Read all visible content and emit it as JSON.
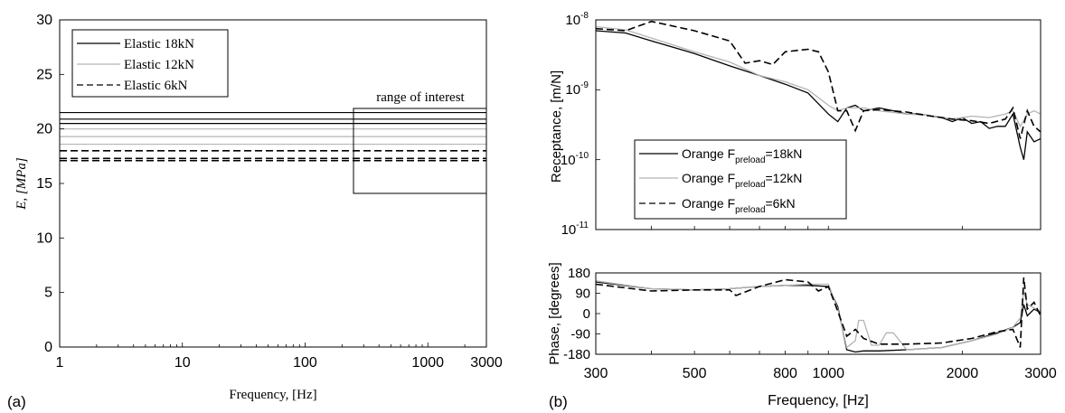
{
  "colors": {
    "black": "#000000",
    "gray": "#b4b4b4"
  },
  "chart_data": [
    {
      "panel_label": "(a)",
      "type": "line",
      "xscale": "log",
      "xlim": [
        1,
        3000
      ],
      "ylim": [
        0,
        30
      ],
      "xticks": [
        1,
        10,
        100,
        1000,
        3000
      ],
      "xtick_labels": [
        "1",
        "10",
        "100",
        "1000",
        "3000"
      ],
      "yticks": [
        0,
        5,
        10,
        15,
        20,
        25,
        30
      ],
      "ytick_labels": [
        "0",
        "5",
        "10",
        "15",
        "20",
        "25",
        "30"
      ],
      "xlabel": "Frequency, [Hz]",
      "ylabel": "E, [MPa]",
      "legend": {
        "placement": "top-left",
        "entries": [
          "Elastic 18kN",
          "Elastic 12kN",
          "Elastic 6kN"
        ]
      },
      "series": [
        {
          "name": "Elastic 18kN",
          "style": "solid",
          "color": "#000000",
          "x": [
            1,
            3000
          ],
          "levels": [
            21.5,
            20.9,
            20.5
          ]
        },
        {
          "name": "Elastic 12kN",
          "style": "solid",
          "color": "#b4b4b4",
          "x": [
            1,
            3000
          ],
          "levels": [
            20.0,
            19.3,
            18.6
          ]
        },
        {
          "name": "Elastic 6kN",
          "style": "dashed",
          "color": "#000000",
          "x": [
            1,
            3000
          ],
          "levels": [
            18.0,
            17.3,
            17.1
          ]
        }
      ],
      "annotation": {
        "text": "range of interest",
        "x": [
          250,
          3000
        ],
        "y": [
          14.1,
          24.2
        ]
      }
    },
    {
      "panel_label": "(b)",
      "type": "line",
      "xscale": "log",
      "yscale": "log",
      "xlim": [
        300,
        3000
      ],
      "ylim": [
        1e-11,
        1e-08
      ],
      "ytick_labels": [
        {
          "value": 1e-08,
          "base": "10",
          "exp": "-8"
        },
        {
          "value": 1e-09,
          "base": "10",
          "exp": "-9"
        },
        {
          "value": 1e-10,
          "base": "10",
          "exp": "-10"
        },
        {
          "value": 1e-11,
          "base": "10",
          "exp": "-11"
        }
      ],
      "ylabel": "Receptance, [m/N]",
      "legend": {
        "placement": "bottom-left",
        "entries": [
          {
            "prefix": "Orange F",
            "sub": "preload",
            "suffix": "=18kN"
          },
          {
            "prefix": "Orange F",
            "sub": "preload",
            "suffix": "=12kN"
          },
          {
            "prefix": "Orange F",
            "sub": "preload",
            "suffix": "=6kN"
          }
        ]
      },
      "series": [
        {
          "name": "Orange Fpreload=18kN",
          "style": "solid",
          "color": "#000000",
          "x": [
            300,
            350,
            400,
            500,
            600,
            700,
            800,
            900,
            1000,
            1050,
            1100,
            1150,
            1200,
            1300,
            1400,
            1500,
            1600,
            1800,
            1900,
            2000,
            2100,
            2200,
            2300,
            2400,
            2500,
            2600,
            2700,
            2750,
            2800,
            2900,
            3000
          ],
          "y": [
            7e-09,
            6.5e-09,
            5e-09,
            3.3e-09,
            2.2e-09,
            1.6e-09,
            1.2e-09,
            9e-10,
            4.5e-10,
            3.5e-10,
            5.5e-10,
            6e-10,
            5e-10,
            5.5e-10,
            5e-10,
            4.5e-10,
            4.5e-10,
            4e-10,
            3.5e-10,
            4e-10,
            3.3e-10,
            3.5e-10,
            2.8e-10,
            3e-10,
            3e-10,
            4.5e-10,
            1.5e-10,
            1e-10,
            2.5e-10,
            1.8e-10,
            2e-10
          ]
        },
        {
          "name": "Orange Fpreload=12kN",
          "style": "solid",
          "color": "#b4b4b4",
          "x": [
            300,
            350,
            400,
            500,
            600,
            700,
            800,
            900,
            1000,
            1050,
            1100,
            1200,
            1300,
            1500,
            1700,
            1900,
            2100,
            2300,
            2500,
            2600,
            2700,
            2800,
            2900,
            3000
          ],
          "y": [
            8e-09,
            7.2e-09,
            5.5e-09,
            3.5e-09,
            2.5e-09,
            1.6e-09,
            1.3e-09,
            1e-09,
            6e-10,
            5e-10,
            5.5e-10,
            5.5e-10,
            5e-10,
            4.5e-10,
            4.3e-10,
            3.8e-10,
            4.2e-10,
            4e-10,
            4.5e-10,
            5e-10,
            3e-10,
            4.5e-10,
            5e-10,
            4.5e-10
          ]
        },
        {
          "name": "Orange Fpreload=6kN",
          "style": "dashed",
          "color": "#000000",
          "x": [
            300,
            350,
            400,
            500,
            600,
            650,
            700,
            750,
            800,
            900,
            950,
            1000,
            1050,
            1100,
            1150,
            1200,
            1300,
            1500,
            1700,
            1900,
            2100,
            2300,
            2500,
            2600,
            2700,
            2800,
            2900,
            3000
          ],
          "y": [
            7.5e-09,
            7e-09,
            9.5e-09,
            7e-09,
            5e-09,
            2.4e-09,
            2.6e-09,
            2.3e-09,
            3.5e-09,
            3.8e-09,
            3.5e-09,
            1.8e-09,
            5e-10,
            5e-10,
            2.6e-10,
            5e-10,
            5.2e-10,
            4.8e-10,
            4.2e-10,
            3.8e-10,
            3.6e-10,
            3.3e-10,
            3.8e-10,
            5.5e-10,
            2e-10,
            5e-10,
            3e-10,
            2.5e-10
          ]
        }
      ]
    },
    {
      "type": "line",
      "xscale": "log",
      "xlim": [
        300,
        3000
      ],
      "ylim": [
        -180,
        180
      ],
      "xticks": [
        300,
        500,
        800,
        1000,
        2000,
        3000
      ],
      "xtick_labels": [
        "300",
        "500",
        "800",
        "1000",
        "2000",
        "3000"
      ],
      "yticks": [
        180,
        90,
        0,
        -90,
        -180
      ],
      "ytick_labels": [
        "180",
        "90",
        "0",
        "-90",
        "-180"
      ],
      "xlabel": "Frequency, [Hz]",
      "ylabel": "Phase, [degrees]",
      "series": [
        {
          "name": "Orange Fpreload=18kN",
          "style": "solid",
          "color": "#000000",
          "x": [
            300,
            400,
            500,
            600,
            700,
            800,
            900,
            1000,
            1050,
            1100,
            1150,
            1200,
            1300,
            1500,
            1800,
            2100,
            2400,
            2600,
            2650,
            2700,
            2750,
            2800,
            2900,
            3000
          ],
          "y": [
            140,
            110,
            105,
            110,
            120,
            125,
            125,
            120,
            30,
            -160,
            -170,
            -165,
            -165,
            -160,
            -150,
            -120,
            -85,
            -60,
            -50,
            -40,
            40,
            -10,
            20,
            5
          ]
        },
        {
          "name": "Orange Fpreload=12kN",
          "style": "solid",
          "color": "#b4b4b4",
          "x": [
            300,
            400,
            500,
            600,
            700,
            800,
            900,
            1000,
            1050,
            1100,
            1150,
            1170,
            1200,
            1250,
            1300,
            1350,
            1400,
            1500,
            1800,
            2100,
            2400,
            2600,
            2700,
            2750,
            2800,
            3000
          ],
          "y": [
            145,
            110,
            105,
            110,
            120,
            125,
            130,
            130,
            20,
            -150,
            -120,
            -30,
            -30,
            -140,
            -140,
            -85,
            -85,
            -160,
            -150,
            -120,
            -90,
            -60,
            -20,
            100,
            40,
            10
          ]
        },
        {
          "name": "Orange Fpreload=6kN",
          "style": "dashed",
          "color": "#000000",
          "x": [
            300,
            400,
            500,
            600,
            620,
            700,
            800,
            900,
            950,
            1000,
            1050,
            1100,
            1150,
            1200,
            1300,
            1500,
            1800,
            2100,
            2400,
            2600,
            2700,
            2750,
            2800,
            2900,
            3000
          ],
          "y": [
            130,
            100,
            105,
            105,
            80,
            120,
            150,
            140,
            100,
            120,
            10,
            -100,
            -70,
            -110,
            -135,
            -135,
            -130,
            -110,
            -80,
            -70,
            -150,
            160,
            20,
            50,
            -10
          ]
        }
      ]
    }
  ],
  "panel_b_label": "(b)"
}
